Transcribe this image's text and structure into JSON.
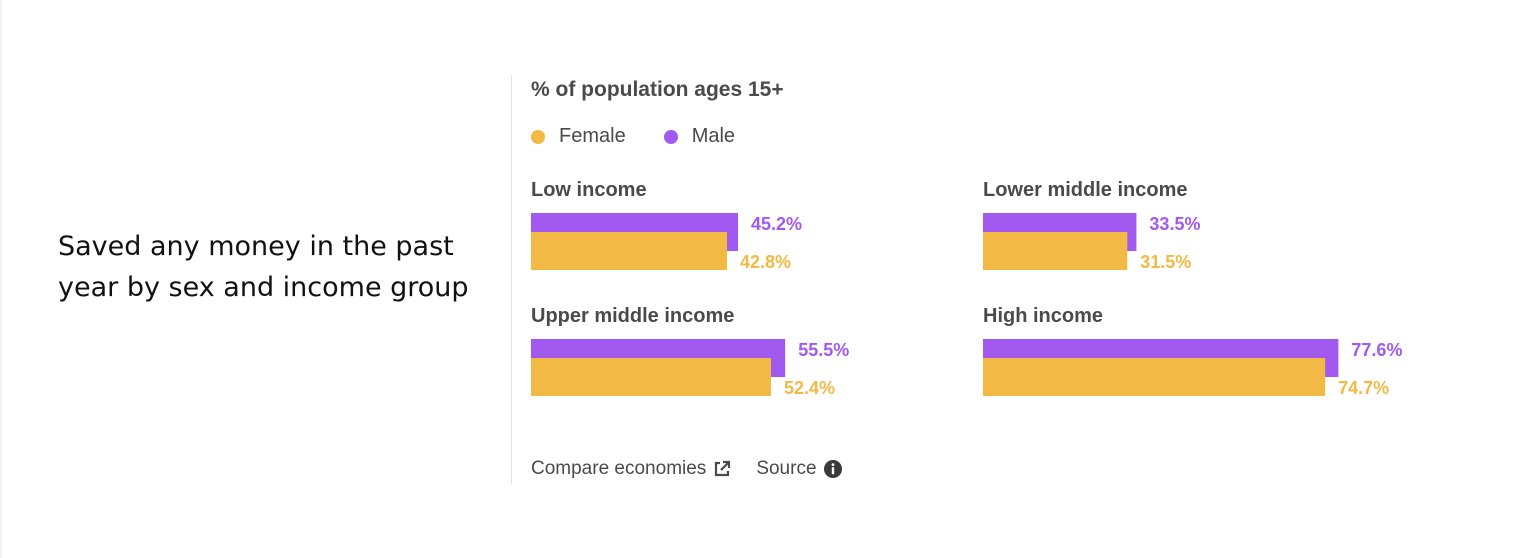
{
  "title": "Saved any money in the past year by sex and income group",
  "colors": {
    "female": "#F2B944",
    "male": "#A259F0"
  },
  "chart_data": {
    "type": "bar",
    "subtitle": "% of population ages 15+",
    "legend": [
      "Female",
      "Male"
    ],
    "categories": [
      "Low income",
      "Lower middle income",
      "Upper middle income",
      "High income"
    ],
    "series": [
      {
        "name": "Male",
        "values": [
          45.2,
          33.5,
          55.5,
          77.6
        ]
      },
      {
        "name": "Female",
        "values": [
          42.8,
          31.5,
          52.4,
          74.7
        ]
      }
    ],
    "unit": "%",
    "xlim": [
      0,
      100
    ],
    "grid": false,
    "legend_position": "top-left"
  },
  "footer": {
    "compare_label": "Compare economies",
    "compare_icon": "external-link-icon",
    "source_label": "Source",
    "source_icon": "info-icon"
  }
}
